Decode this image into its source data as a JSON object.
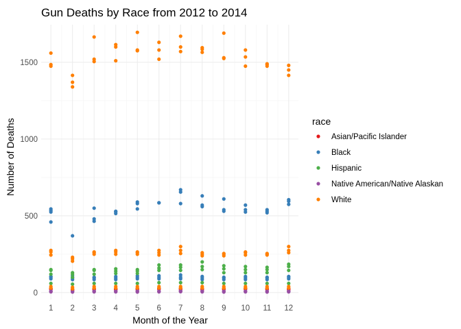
{
  "chart_data": {
    "type": "scatter",
    "title": "Gun Deaths by Race from 2012 to 2014",
    "xlabel": "Month of the Year",
    "ylabel": "Number of Deaths",
    "x_ticks": [
      1,
      2,
      3,
      4,
      5,
      6,
      7,
      8,
      9,
      10,
      11,
      12
    ],
    "y_ticks": [
      0,
      500,
      1000,
      1500
    ],
    "xlim": [
      0.55,
      12.45
    ],
    "ylim": [
      -45,
      1745
    ],
    "grid": true,
    "legend": {
      "title": "race",
      "position": "right"
    },
    "series": [
      {
        "name": "Asian/Pacific Islander",
        "color": "#E41A1C",
        "points": [
          [
            1,
            22
          ],
          [
            1,
            25
          ],
          [
            1,
            28
          ],
          [
            2,
            15
          ],
          [
            2,
            18
          ],
          [
            2,
            22
          ],
          [
            3,
            20
          ],
          [
            3,
            24
          ],
          [
            3,
            27
          ],
          [
            4,
            18
          ],
          [
            4,
            22
          ],
          [
            4,
            26
          ],
          [
            5,
            20
          ],
          [
            5,
            24
          ],
          [
            5,
            28
          ],
          [
            6,
            22
          ],
          [
            6,
            26
          ],
          [
            6,
            30
          ],
          [
            7,
            20
          ],
          [
            7,
            25
          ],
          [
            7,
            29
          ],
          [
            8,
            18
          ],
          [
            8,
            22
          ],
          [
            8,
            27
          ],
          [
            9,
            20
          ],
          [
            9,
            24
          ],
          [
            9,
            28
          ],
          [
            10,
            22
          ],
          [
            10,
            26
          ],
          [
            10,
            30
          ],
          [
            11,
            20
          ],
          [
            11,
            25
          ],
          [
            11,
            29
          ],
          [
            12,
            18
          ],
          [
            12,
            23
          ],
          [
            12,
            27
          ]
        ]
      },
      {
        "name": "Black",
        "color": "#377EB8",
        "points": [
          [
            1,
            460
          ],
          [
            1,
            525
          ],
          [
            1,
            535
          ],
          [
            1,
            545
          ],
          [
            1,
            90
          ],
          [
            1,
            100
          ],
          [
            1,
            105
          ],
          [
            2,
            370
          ],
          [
            2,
            85
          ],
          [
            2,
            95
          ],
          [
            2,
            110
          ],
          [
            3,
            465
          ],
          [
            3,
            480
          ],
          [
            3,
            550
          ],
          [
            3,
            85
          ],
          [
            3,
            95
          ],
          [
            3,
            100
          ],
          [
            4,
            515
          ],
          [
            4,
            525
          ],
          [
            4,
            530
          ],
          [
            4,
            85
          ],
          [
            4,
            95
          ],
          [
            4,
            105
          ],
          [
            5,
            545
          ],
          [
            5,
            580
          ],
          [
            5,
            590
          ],
          [
            5,
            90
          ],
          [
            5,
            100
          ],
          [
            5,
            110
          ],
          [
            6,
            585
          ],
          [
            6,
            585
          ],
          [
            6,
            90
          ],
          [
            6,
            100
          ],
          [
            6,
            110
          ],
          [
            7,
            580
          ],
          [
            7,
            655
          ],
          [
            7,
            670
          ],
          [
            7,
            90
          ],
          [
            7,
            100
          ],
          [
            7,
            115
          ],
          [
            8,
            560
          ],
          [
            8,
            570
          ],
          [
            8,
            630
          ],
          [
            8,
            85
          ],
          [
            8,
            95
          ],
          [
            8,
            105
          ],
          [
            9,
            530
          ],
          [
            9,
            540
          ],
          [
            9,
            610
          ],
          [
            9,
            85
          ],
          [
            9,
            95
          ],
          [
            9,
            100
          ],
          [
            10,
            525
          ],
          [
            10,
            540
          ],
          [
            10,
            570
          ],
          [
            10,
            85
          ],
          [
            10,
            95
          ],
          [
            10,
            105
          ],
          [
            11,
            520
          ],
          [
            11,
            530
          ],
          [
            11,
            540
          ],
          [
            11,
            85
          ],
          [
            11,
            95
          ],
          [
            11,
            100
          ],
          [
            12,
            575
          ],
          [
            12,
            595
          ],
          [
            12,
            605
          ],
          [
            12,
            90
          ],
          [
            12,
            100
          ],
          [
            12,
            105
          ]
        ]
      },
      {
        "name": "Hispanic",
        "color": "#4DAF4A",
        "points": [
          [
            1,
            120
          ],
          [
            1,
            145
          ],
          [
            1,
            150
          ],
          [
            1,
            60
          ],
          [
            2,
            100
          ],
          [
            2,
            120
          ],
          [
            2,
            130
          ],
          [
            2,
            55
          ],
          [
            3,
            120
          ],
          [
            3,
            145
          ],
          [
            3,
            150
          ],
          [
            3,
            60
          ],
          [
            4,
            125
          ],
          [
            4,
            140
          ],
          [
            4,
            155
          ],
          [
            4,
            60
          ],
          [
            5,
            125
          ],
          [
            5,
            140
          ],
          [
            5,
            150
          ],
          [
            5,
            60
          ],
          [
            6,
            145
          ],
          [
            6,
            160
          ],
          [
            6,
            180
          ],
          [
            6,
            65
          ],
          [
            7,
            145
          ],
          [
            7,
            165
          ],
          [
            7,
            180
          ],
          [
            7,
            65
          ],
          [
            8,
            150
          ],
          [
            8,
            170
          ],
          [
            8,
            200
          ],
          [
            8,
            65
          ],
          [
            9,
            130
          ],
          [
            9,
            155
          ],
          [
            9,
            175
          ],
          [
            9,
            60
          ],
          [
            10,
            130
          ],
          [
            10,
            150
          ],
          [
            10,
            170
          ],
          [
            10,
            60
          ],
          [
            11,
            130
          ],
          [
            11,
            150
          ],
          [
            11,
            165
          ],
          [
            11,
            60
          ],
          [
            12,
            145
          ],
          [
            12,
            170
          ],
          [
            12,
            185
          ],
          [
            12,
            60
          ]
        ]
      },
      {
        "name": "Native American/Native Alaskan",
        "color": "#984EA3",
        "points": [
          [
            1,
            5
          ],
          [
            1,
            8
          ],
          [
            1,
            10
          ],
          [
            2,
            4
          ],
          [
            2,
            7
          ],
          [
            2,
            9
          ],
          [
            3,
            5
          ],
          [
            3,
            8
          ],
          [
            3,
            10
          ],
          [
            4,
            5
          ],
          [
            4,
            7
          ],
          [
            4,
            10
          ],
          [
            5,
            4
          ],
          [
            5,
            8
          ],
          [
            5,
            11
          ],
          [
            6,
            5
          ],
          [
            6,
            8
          ],
          [
            6,
            10
          ],
          [
            7,
            6
          ],
          [
            7,
            9
          ],
          [
            7,
            12
          ],
          [
            8,
            5
          ],
          [
            8,
            8
          ],
          [
            8,
            11
          ],
          [
            9,
            4
          ],
          [
            9,
            7
          ],
          [
            9,
            10
          ],
          [
            10,
            5
          ],
          [
            10,
            8
          ],
          [
            10,
            10
          ],
          [
            11,
            4
          ],
          [
            11,
            7
          ],
          [
            11,
            9
          ],
          [
            12,
            5
          ],
          [
            12,
            8
          ],
          [
            12,
            10
          ]
        ]
      },
      {
        "name": "White",
        "color": "#FF7F00",
        "points": [
          [
            1,
            1475
          ],
          [
            1,
            1485
          ],
          [
            1,
            1560
          ],
          [
            1,
            245
          ],
          [
            1,
            265
          ],
          [
            1,
            275
          ],
          [
            1,
            30
          ],
          [
            1,
            40
          ],
          [
            2,
            1340
          ],
          [
            2,
            1370
          ],
          [
            2,
            1415
          ],
          [
            2,
            205
          ],
          [
            2,
            220
          ],
          [
            2,
            230
          ],
          [
            2,
            25
          ],
          [
            2,
            35
          ],
          [
            3,
            1505
          ],
          [
            3,
            1520
          ],
          [
            3,
            1665
          ],
          [
            3,
            250
          ],
          [
            3,
            260
          ],
          [
            3,
            265
          ],
          [
            3,
            30
          ],
          [
            3,
            40
          ],
          [
            4,
            1510
          ],
          [
            4,
            1600
          ],
          [
            4,
            1615
          ],
          [
            4,
            250
          ],
          [
            4,
            265
          ],
          [
            4,
            275
          ],
          [
            4,
            30
          ],
          [
            4,
            40
          ],
          [
            5,
            1575
          ],
          [
            5,
            1580
          ],
          [
            5,
            1695
          ],
          [
            5,
            250
          ],
          [
            5,
            260
          ],
          [
            5,
            265
          ],
          [
            5,
            30
          ],
          [
            5,
            40
          ],
          [
            6,
            1520
          ],
          [
            6,
            1580
          ],
          [
            6,
            1630
          ],
          [
            6,
            245
          ],
          [
            6,
            260
          ],
          [
            6,
            275
          ],
          [
            6,
            30
          ],
          [
            6,
            40
          ],
          [
            7,
            1570
          ],
          [
            7,
            1600
          ],
          [
            7,
            1670
          ],
          [
            7,
            255
          ],
          [
            7,
            275
          ],
          [
            7,
            300
          ],
          [
            7,
            30
          ],
          [
            7,
            40
          ],
          [
            8,
            1565
          ],
          [
            8,
            1585
          ],
          [
            8,
            1595
          ],
          [
            8,
            240
          ],
          [
            8,
            250
          ],
          [
            8,
            260
          ],
          [
            8,
            30
          ],
          [
            8,
            40
          ],
          [
            9,
            1525
          ],
          [
            9,
            1530
          ],
          [
            9,
            1690
          ],
          [
            9,
            240
          ],
          [
            9,
            250
          ],
          [
            9,
            255
          ],
          [
            9,
            30
          ],
          [
            9,
            40
          ],
          [
            10,
            1475
          ],
          [
            10,
            1535
          ],
          [
            10,
            1580
          ],
          [
            10,
            245
          ],
          [
            10,
            260
          ],
          [
            10,
            265
          ],
          [
            10,
            30
          ],
          [
            10,
            40
          ],
          [
            11,
            1475
          ],
          [
            11,
            1485
          ],
          [
            11,
            1490
          ],
          [
            11,
            245
          ],
          [
            11,
            250
          ],
          [
            11,
            255
          ],
          [
            11,
            30
          ],
          [
            11,
            40
          ],
          [
            12,
            1415
          ],
          [
            12,
            1450
          ],
          [
            12,
            1480
          ],
          [
            12,
            260
          ],
          [
            12,
            275
          ],
          [
            12,
            300
          ],
          [
            12,
            30
          ],
          [
            12,
            40
          ]
        ]
      }
    ]
  }
}
